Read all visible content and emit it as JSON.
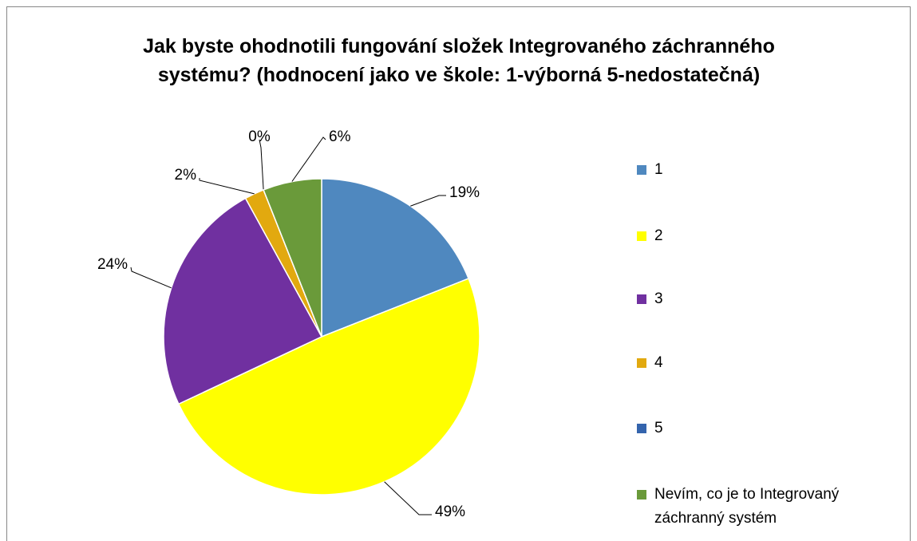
{
  "chart_data": {
    "type": "pie",
    "title": "Jak byste ohodnotili fungování složek Integrovaného záchranného systému? (hodnocení jako ve škole: 1-výborná 5-nedostatečná)",
    "categories": [
      "1",
      "2",
      "3",
      "4",
      "5",
      "Nevím, co je to Integrovaný záchranný systém"
    ],
    "values": [
      19,
      49,
      24,
      2,
      0,
      6
    ],
    "value_labels": [
      "19%",
      "49%",
      "24%",
      "2%",
      "0%",
      "6%"
    ],
    "colors": [
      "#4f88bf",
      "#ffff00",
      "#7030a0",
      "#e2a90f",
      "#3464ad",
      "#6a9a3a"
    ],
    "legend": "right"
  }
}
